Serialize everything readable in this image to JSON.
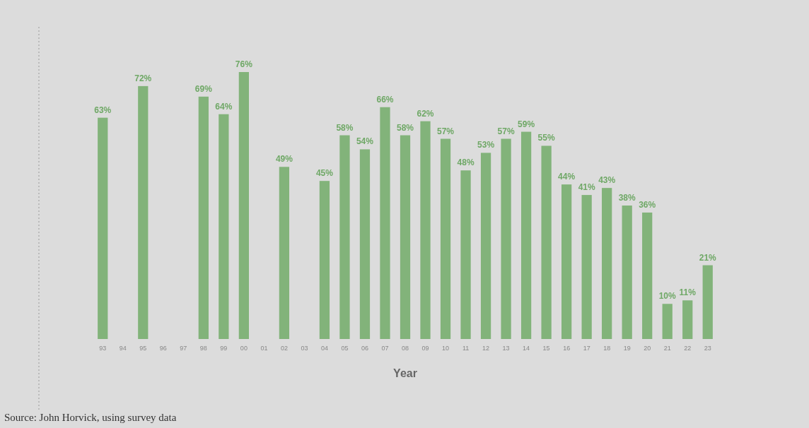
{
  "chart_data": {
    "type": "bar",
    "xlabel": "Year",
    "categories": [
      "93",
      "94",
      "95",
      "96",
      "97",
      "98",
      "99",
      "00",
      "01",
      "02",
      "03",
      "04",
      "05",
      "06",
      "07",
      "08",
      "09",
      "10",
      "11",
      "12",
      "13",
      "14",
      "15",
      "16",
      "17",
      "18",
      "19",
      "20",
      "21",
      "22",
      "23"
    ],
    "values": [
      63,
      null,
      72,
      null,
      null,
      69,
      64,
      76,
      null,
      49,
      null,
      45,
      58,
      54,
      66,
      58,
      62,
      57,
      48,
      53,
      57,
      59,
      55,
      44,
      41,
      43,
      38,
      36,
      10,
      11,
      21
    ],
    "value_labels": [
      "63%",
      null,
      "72%",
      null,
      null,
      "69%",
      "64%",
      "76%",
      null,
      "49%",
      null,
      "45%",
      "58%",
      "54%",
      "66%",
      "58%",
      "62%",
      "57%",
      "48%",
      "53%",
      "57%",
      "59%",
      "55%",
      "44%",
      "41%",
      "43%",
      "38%",
      "36%",
      "10%",
      "11%",
      "21%"
    ],
    "color": "#82b37a",
    "annotations": [
      "Source: John Horvick, using survey data"
    ]
  }
}
